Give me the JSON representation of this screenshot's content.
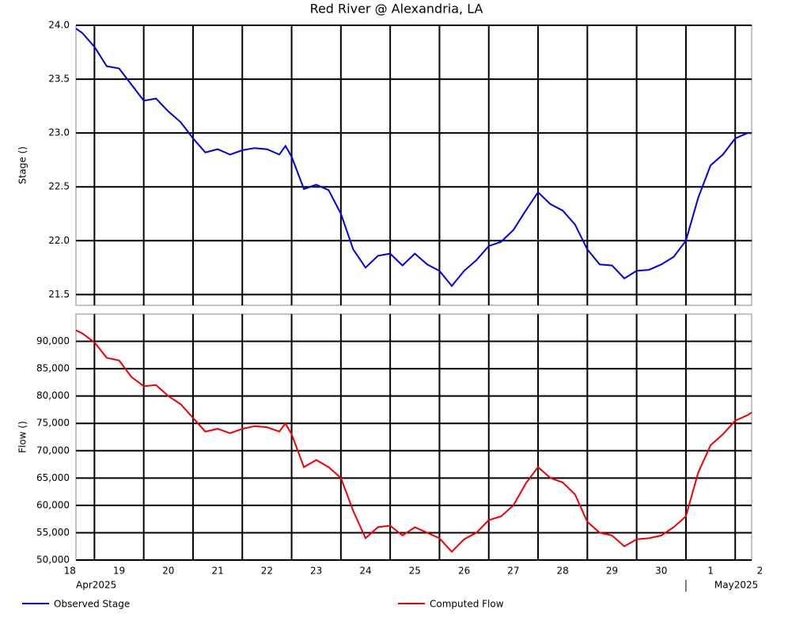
{
  "chart_data": [
    {
      "type": "line",
      "title": "Red River @ Alexandria, LA",
      "y_label": "Stage ()",
      "x": [
        "2025-04-18T15:00",
        "2025-04-18T18:00",
        "2025-04-19T00:00",
        "2025-04-19T06:00",
        "2025-04-19T12:00",
        "2025-04-19T18:00",
        "2025-04-20T00:00",
        "2025-04-20T06:00",
        "2025-04-20T12:00",
        "2025-04-20T18:00",
        "2025-04-21T00:00",
        "2025-04-21T06:00",
        "2025-04-21T12:00",
        "2025-04-21T18:00",
        "2025-04-22T00:00",
        "2025-04-22T06:00",
        "2025-04-22T12:00",
        "2025-04-22T18:00",
        "2025-04-22T21:00",
        "2025-04-23T00:00",
        "2025-04-23T06:00",
        "2025-04-23T12:00",
        "2025-04-23T18:00",
        "2025-04-24T00:00",
        "2025-04-24T06:00",
        "2025-04-24T12:00",
        "2025-04-24T18:00",
        "2025-04-25T00:00",
        "2025-04-25T06:00",
        "2025-04-25T12:00",
        "2025-04-25T18:00",
        "2025-04-26T00:00",
        "2025-04-26T06:00",
        "2025-04-26T12:00",
        "2025-04-26T18:00",
        "2025-04-27T00:00",
        "2025-04-27T06:00",
        "2025-04-27T12:00",
        "2025-04-27T18:00",
        "2025-04-28T00:00",
        "2025-04-28T06:00",
        "2025-04-28T12:00",
        "2025-04-28T18:00",
        "2025-04-29T00:00",
        "2025-04-29T06:00",
        "2025-04-29T12:00",
        "2025-04-29T18:00",
        "2025-04-30T00:00",
        "2025-04-30T06:00",
        "2025-04-30T12:00",
        "2025-04-30T18:00",
        "2025-05-01T00:00",
        "2025-05-01T06:00",
        "2025-05-01T12:00",
        "2025-05-01T18:00",
        "2025-05-02T00:00",
        "2025-05-02T06:00",
        "2025-05-02T08:00"
      ],
      "series": [
        {
          "name": "Observed Stage",
          "color": "#0000dd",
          "values": [
            23.97,
            23.93,
            23.8,
            23.62,
            23.6,
            23.45,
            23.3,
            23.32,
            23.2,
            23.1,
            22.95,
            22.82,
            22.85,
            22.8,
            22.84,
            22.86,
            22.85,
            22.8,
            22.88,
            22.78,
            22.48,
            22.52,
            22.47,
            22.25,
            21.92,
            21.75,
            21.86,
            21.88,
            21.77,
            21.88,
            21.78,
            21.72,
            21.58,
            21.72,
            21.82,
            21.95,
            21.99,
            22.1,
            22.28,
            22.45,
            22.34,
            22.28,
            22.15,
            21.92,
            21.78,
            21.77,
            21.65,
            21.72,
            21.73,
            21.78,
            21.85,
            22.0,
            22.4,
            22.7,
            22.8,
            22.95,
            23.0,
            23.0
          ]
        }
      ],
      "xlim": [
        "2025-04-18T15:00",
        "2025-05-02T08:00"
      ],
      "xticks": [
        "2025-04-19T00:00",
        "2025-04-20T00:00",
        "2025-04-21T00:00",
        "2025-04-22T00:00",
        "2025-04-23T00:00",
        "2025-04-24T00:00",
        "2025-04-25T00:00",
        "2025-04-26T00:00",
        "2025-04-27T00:00",
        "2025-04-28T00:00",
        "2025-04-29T00:00",
        "2025-04-30T00:00",
        "2025-05-01T00:00",
        "2025-05-02T00:00"
      ],
      "ylim": [
        21.4,
        24.0
      ],
      "yticks": [
        {
          "value": 21.5,
          "label": "21.5"
        },
        {
          "value": 22,
          "label": "22.0"
        },
        {
          "value": 22.5,
          "label": "22.5"
        },
        {
          "value": 23,
          "label": "23.0"
        },
        {
          "value": 23.5,
          "label": "23.5"
        },
        {
          "value": 24,
          "label": "24.0"
        }
      ],
      "grid": true
    },
    {
      "type": "line",
      "y_label": "Flow ()",
      "x": [
        "2025-04-18T15:00",
        "2025-04-18T18:00",
        "2025-04-19T00:00",
        "2025-04-19T06:00",
        "2025-04-19T12:00",
        "2025-04-19T18:00",
        "2025-04-20T00:00",
        "2025-04-20T06:00",
        "2025-04-20T12:00",
        "2025-04-20T18:00",
        "2025-04-21T00:00",
        "2025-04-21T06:00",
        "2025-04-21T12:00",
        "2025-04-21T18:00",
        "2025-04-22T00:00",
        "2025-04-22T06:00",
        "2025-04-22T12:00",
        "2025-04-22T18:00",
        "2025-04-22T21:00",
        "2025-04-23T00:00",
        "2025-04-23T06:00",
        "2025-04-23T12:00",
        "2025-04-23T18:00",
        "2025-04-24T00:00",
        "2025-04-24T06:00",
        "2025-04-24T12:00",
        "2025-04-24T18:00",
        "2025-04-25T00:00",
        "2025-04-25T06:00",
        "2025-04-25T12:00",
        "2025-04-25T18:00",
        "2025-04-26T00:00",
        "2025-04-26T06:00",
        "2025-04-26T12:00",
        "2025-04-26T18:00",
        "2025-04-27T00:00",
        "2025-04-27T06:00",
        "2025-04-27T12:00",
        "2025-04-27T18:00",
        "2025-04-28T00:00",
        "2025-04-28T06:00",
        "2025-04-28T12:00",
        "2025-04-28T18:00",
        "2025-04-29T00:00",
        "2025-04-29T06:00",
        "2025-04-29T12:00",
        "2025-04-29T18:00",
        "2025-04-30T00:00",
        "2025-04-30T06:00",
        "2025-04-30T12:00",
        "2025-04-30T18:00",
        "2025-05-01T00:00",
        "2025-05-01T06:00",
        "2025-05-01T12:00",
        "2025-05-01T18:00",
        "2025-05-02T00:00",
        "2025-05-02T06:00",
        "2025-05-02T08:00"
      ],
      "series": [
        {
          "name": "Computed Flow",
          "color": "#ee0000",
          "values": [
            92000,
            91500,
            89800,
            87000,
            86500,
            83500,
            81800,
            82000,
            80000,
            78500,
            76000,
            73500,
            74000,
            73200,
            74000,
            74500,
            74300,
            73500,
            75000,
            73000,
            67000,
            68300,
            67000,
            65000,
            59000,
            54000,
            56000,
            56300,
            54500,
            56000,
            55000,
            54000,
            51500,
            53800,
            55000,
            57300,
            58000,
            60000,
            64000,
            67000,
            65000,
            64200,
            62000,
            57000,
            55000,
            54500,
            52500,
            53800,
            54000,
            54500,
            56000,
            58000,
            66000,
            71000,
            73000,
            75500,
            76500,
            77000
          ]
        }
      ],
      "xlim": [
        "2025-04-18T15:00",
        "2025-05-02T08:00"
      ],
      "xticks": [
        {
          "value": "2025-04-18T00:00",
          "label": "18"
        },
        {
          "value": "2025-04-19T00:00",
          "label": "19"
        },
        {
          "value": "2025-04-20T00:00",
          "label": "20"
        },
        {
          "value": "2025-04-21T00:00",
          "label": "21"
        },
        {
          "value": "2025-04-22T00:00",
          "label": "22"
        },
        {
          "value": "2025-04-23T00:00",
          "label": "23"
        },
        {
          "value": "2025-04-24T00:00",
          "label": "24"
        },
        {
          "value": "2025-04-25T00:00",
          "label": "25"
        },
        {
          "value": "2025-04-26T00:00",
          "label": "26"
        },
        {
          "value": "2025-04-27T00:00",
          "label": "27"
        },
        {
          "value": "2025-04-28T00:00",
          "label": "28"
        },
        {
          "value": "2025-04-29T00:00",
          "label": "29"
        },
        {
          "value": "2025-04-30T00:00",
          "label": "30"
        },
        {
          "value": "2025-05-01T00:00",
          "label": "1"
        },
        {
          "value": "2025-05-02T00:00",
          "label": "2"
        }
      ],
      "month_labels": [
        {
          "value": "2025-04-01T00:00",
          "label": "Apr2025"
        },
        {
          "value": "2025-05-01T00:00",
          "label": "May2025"
        }
      ],
      "ylim": [
        50000,
        95000
      ],
      "yticks": [
        {
          "value": 50000,
          "label": "50,000"
        },
        {
          "value": 55000,
          "label": "55,000"
        },
        {
          "value": 60000,
          "label": "60,000"
        },
        {
          "value": 65000,
          "label": "65,000"
        },
        {
          "value": 70000,
          "label": "70,000"
        },
        {
          "value": 75000,
          "label": "75,000"
        },
        {
          "value": 80000,
          "label": "80,000"
        },
        {
          "value": 85000,
          "label": "85,000"
        },
        {
          "value": 90000,
          "label": "90,000"
        }
      ],
      "grid": true
    }
  ]
}
